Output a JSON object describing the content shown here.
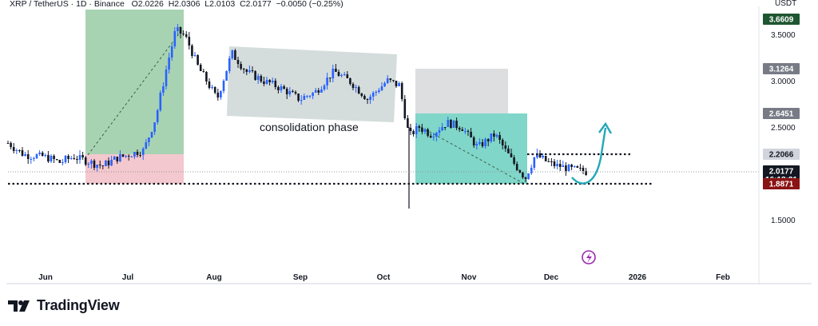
{
  "header": {
    "symbol": "XRP / TetherUS",
    "interval": "1D",
    "exchange": "Binance",
    "open": "O2.0226",
    "high": "H2.0306",
    "low": "L2.0103",
    "close": "C2.0177",
    "change": "−0.0050 (−0.25%)"
  },
  "currency_label": "USDT",
  "brand": "TradingView",
  "colors": {
    "bull": "#2962ff",
    "bear": "#131722",
    "target_box": "#8bc49a",
    "stop_box": "#efb6bd",
    "consolidation_box": "#c9d3d3",
    "teal_box": "#4ac4b0",
    "arrow": "#22a7b7"
  },
  "chart_data": {
    "type": "candlestick",
    "title": "",
    "xlabel": "",
    "ylabel": "",
    "ylim": [
      1.2,
      3.75
    ],
    "grid": false,
    "x_ticks": [
      "Jun",
      "Jul",
      "Aug",
      "Sep",
      "Oct",
      "Nov",
      "Dec",
      "2026",
      "Feb"
    ],
    "y_ticks": [
      "3.5000",
      "3.0000",
      "2.5000",
      "1.5000"
    ],
    "price_tags": [
      {
        "label": "3.6609",
        "value": 3.6609,
        "bg": "#1e5631",
        "fg": "#ffffff"
      },
      {
        "label": "3.1264",
        "value": 3.1264,
        "bg": "#787b86",
        "fg": "#ffffff"
      },
      {
        "label": "2.6451",
        "value": 2.6451,
        "bg": "#787b86",
        "fg": "#ffffff"
      },
      {
        "label": "2.2066",
        "value": 2.2066,
        "bg": "#d1d4dc",
        "fg": "#131722"
      },
      {
        "label": "2.0177",
        "value": 2.0177,
        "bg": "#131722",
        "fg": "#ffffff",
        "sub": "16:18:21"
      },
      {
        "label": "1.8872",
        "value": 1.8872,
        "bg": "#1e7b3a",
        "fg": "#ffffff"
      },
      {
        "label": "1.8871",
        "value": 1.8871,
        "bg": "#8a1313",
        "fg": "#ffffff"
      }
    ],
    "annotations": [
      "consolidation phase"
    ],
    "support_level": 1.885,
    "resistance_level": 2.21,
    "closes": [
      {
        "date": "May 25",
        "close": 2.34
      },
      {
        "date": "May 30",
        "close": 2.2
      },
      {
        "date": "Jun 5",
        "close": 2.18
      },
      {
        "date": "Jun 10",
        "close": 2.12
      },
      {
        "date": "Jun 15",
        "close": 2.18
      },
      {
        "date": "Jun 20",
        "close": 2.08
      },
      {
        "date": "Jun 25",
        "close": 2.16
      },
      {
        "date": "Jun 30",
        "close": 2.2
      },
      {
        "date": "Jul 5",
        "close": 2.25
      },
      {
        "date": "Jul 10",
        "close": 2.6
      },
      {
        "date": "Jul 15",
        "close": 3.2
      },
      {
        "date": "Jul 18",
        "close": 3.55
      },
      {
        "date": "Jul 22",
        "close": 3.48
      },
      {
        "date": "Jul 28",
        "close": 3.15
      },
      {
        "date": "Aug 3",
        "close": 2.8
      },
      {
        "date": "Aug 8",
        "close": 3.3
      },
      {
        "date": "Aug 14",
        "close": 3.1
      },
      {
        "date": "Aug 20",
        "close": 3.0
      },
      {
        "date": "Aug 26",
        "close": 2.92
      },
      {
        "date": "Sep 1",
        "close": 2.8
      },
      {
        "date": "Sep 7",
        "close": 2.88
      },
      {
        "date": "Sep 13",
        "close": 3.1
      },
      {
        "date": "Sep 19",
        "close": 2.98
      },
      {
        "date": "Sep 25",
        "close": 2.8
      },
      {
        "date": "Oct 1",
        "close": 3.0
      },
      {
        "date": "Oct 6",
        "close": 2.95
      },
      {
        "date": "Oct 10",
        "close": 2.4
      },
      {
        "date": "Oct 15",
        "close": 2.5
      },
      {
        "date": "Oct 20",
        "close": 2.42
      },
      {
        "date": "Oct 27",
        "close": 2.55
      },
      {
        "date": "Nov 1",
        "close": 2.5
      },
      {
        "date": "Nov 6",
        "close": 2.28
      },
      {
        "date": "Nov 12",
        "close": 2.42
      },
      {
        "date": "Nov 18",
        "close": 2.15
      },
      {
        "date": "Nov 21",
        "close": 1.95
      },
      {
        "date": "Nov 25",
        "close": 2.2
      },
      {
        "date": "Dec 1",
        "close": 2.1
      },
      {
        "date": "Dec 6",
        "close": 2.05
      },
      {
        "date": "Dec 12",
        "close": 2.02
      }
    ],
    "wick_low": 1.62
  }
}
